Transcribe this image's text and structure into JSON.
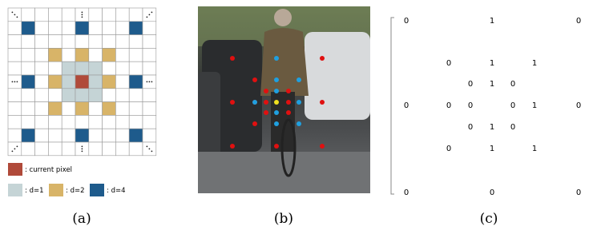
{
  "panels": [
    {
      "caption": "(a)",
      "legend": [
        ": current pixel",
        ": d=1",
        ": d=2",
        ": d=4"
      ]
    },
    {
      "caption": "(b)"
    },
    {
      "caption": "(c)",
      "matrix": [
        [
          "0",
          null,
          null,
          "1",
          null,
          null,
          "0"
        ],
        [
          null,
          "0",
          null,
          "1",
          null,
          "1",
          null
        ],
        [
          null,
          null,
          "0",
          "1",
          "0",
          null,
          null
        ],
        [
          "0",
          "0",
          "0",
          null,
          "0",
          "1",
          "0"
        ],
        [
          null,
          null,
          "0",
          "1",
          "0",
          null,
          null
        ],
        [
          null,
          "0",
          null,
          "1",
          null,
          "1",
          null
        ],
        [
          "0",
          null,
          null,
          "0",
          null,
          null,
          "0"
        ]
      ]
    }
  ]
}
